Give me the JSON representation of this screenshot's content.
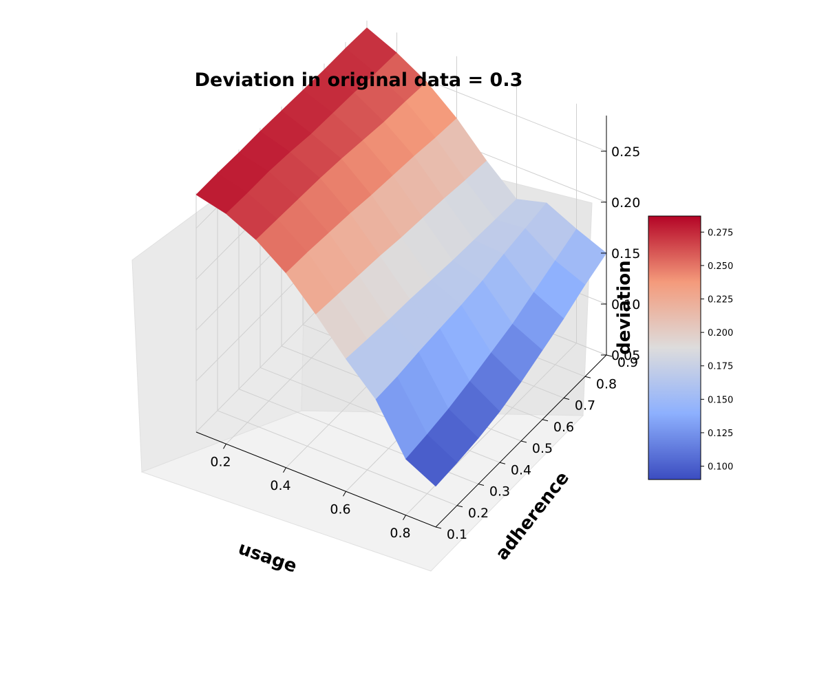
{
  "chart_data": {
    "type": "surface3d",
    "title": "Deviation in original data = 0.3",
    "xlabel": "usage",
    "ylabel": "adherence",
    "zlabel": "deviation",
    "colormap": "coolwarm",
    "colormap_stops": [
      "#3b4cc0",
      "#8db0fe",
      "#dddcdc",
      "#f49a7b",
      "#b40426"
    ],
    "x": [
      0.1,
      0.2,
      0.3,
      0.4,
      0.5,
      0.6,
      0.7,
      0.8,
      0.9
    ],
    "y": [
      0.1,
      0.2,
      0.3,
      0.4,
      0.5,
      0.6,
      0.7,
      0.8,
      0.9
    ],
    "xlim": [
      0.1,
      0.9
    ],
    "ylim": [
      0.1,
      0.9
    ],
    "zlim": [
      0.05,
      0.285
    ],
    "xticks": [
      0.2,
      0.4,
      0.6,
      0.8
    ],
    "yticks": [
      0.1,
      0.2,
      0.3,
      0.4,
      0.5,
      0.6,
      0.7,
      0.8,
      0.9
    ],
    "zticks": [
      0.05,
      0.1,
      0.15,
      0.2,
      0.25
    ],
    "colorbar_ticks": [
      0.1,
      0.125,
      0.15,
      0.175,
      0.2,
      0.225,
      0.25,
      0.275
    ],
    "colorbar_range": [
      0.09,
      0.287
    ],
    "z_by_usage": [
      [
        0.283,
        0.283,
        0.282,
        0.282,
        0.281,
        0.28,
        0.279,
        0.279,
        0.278
      ],
      [
        0.276,
        0.275,
        0.275,
        0.273,
        0.27,
        0.269,
        0.268,
        0.266,
        0.265
      ],
      [
        0.262,
        0.261,
        0.26,
        0.259,
        0.257,
        0.254,
        0.251,
        0.25,
        0.248
      ],
      [
        0.241,
        0.24,
        0.238,
        0.236,
        0.233,
        0.231,
        0.229,
        0.226,
        0.224
      ],
      [
        0.212,
        0.21,
        0.208,
        0.206,
        0.203,
        0.201,
        0.199,
        0.196,
        0.194
      ],
      [
        0.18,
        0.178,
        0.176,
        0.175,
        0.173,
        0.171,
        0.17,
        0.169,
        0.168
      ],
      [
        0.152,
        0.153,
        0.156,
        0.158,
        0.16,
        0.163,
        0.168,
        0.172,
        0.176
      ],
      [
        0.105,
        0.108,
        0.112,
        0.118,
        0.125,
        0.132,
        0.142,
        0.152,
        0.162
      ],
      [
        0.09,
        0.092,
        0.095,
        0.1,
        0.108,
        0.118,
        0.128,
        0.14,
        0.15
      ]
    ]
  }
}
